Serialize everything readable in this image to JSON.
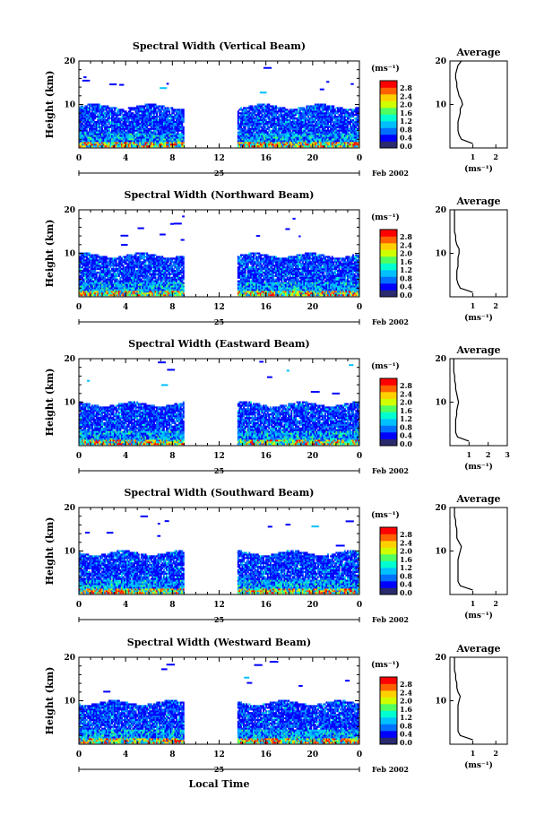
{
  "figure": {
    "panel_titles": [
      "Spectral Width (Vertical Beam)",
      "Spectral Width (Northward Beam)",
      "Spectral Width (Eastward Beam)",
      "Spectral Width (Southward Beam)",
      "Spectral Width (Westward Beam)"
    ],
    "ylabel": "Height (km)",
    "xlabel": "Local Time",
    "date_day": "25",
    "date_month": "Feb 2002",
    "colorbar_unit": "(ms⁻¹)",
    "colorbar_ticks": [
      "2.8",
      "2.4",
      "2.0",
      "1.6",
      "1.2",
      "0.8",
      "0.4",
      "0.0"
    ],
    "average_title": "Average",
    "average_unit": "(ms⁻¹)",
    "x_ticks": [
      "0",
      "4",
      "8",
      "12",
      "16",
      "20",
      "0"
    ],
    "y_ticks": [
      "20",
      "10"
    ],
    "profile_x_ticks": [
      [
        "1",
        "2"
      ],
      [
        "1",
        "2"
      ],
      [
        "1",
        "2",
        "3"
      ],
      [
        "1",
        "2"
      ],
      [
        "1",
        "2"
      ]
    ]
  },
  "chart_data": {
    "type": "heatmap",
    "panels": [
      {
        "title": "Spectral Width (Vertical Beam)",
        "beam": "vertical"
      },
      {
        "title": "Spectral Width (Northward Beam)",
        "beam": "northward"
      },
      {
        "title": "Spectral Width (Eastward Beam)",
        "beam": "eastward"
      },
      {
        "title": "Spectral Width (Southward Beam)",
        "beam": "southward"
      },
      {
        "title": "Spectral Width (Westward Beam)",
        "beam": "westward"
      }
    ],
    "xlabel": "Local Time",
    "ylabel": "Height (km)",
    "xlim": [
      0,
      24
    ],
    "ylim": [
      0,
      20
    ],
    "data_gap_hours": [
      9,
      13.5
    ],
    "echo_top_km": 10,
    "colorbar_range_ms": [
      0.0,
      3.0
    ],
    "colorbar_colors": [
      "#2a2a6e",
      "#0000ff",
      "#0070ff",
      "#00c0ff",
      "#00ffd0",
      "#50ff60",
      "#d0ff00",
      "#ffd000",
      "#ff6000",
      "#ff0000"
    ],
    "average_profiles": [
      {
        "beam": "vertical",
        "xlim": [
          0,
          2.5
        ],
        "heights": [
          1,
          2,
          3,
          4,
          5,
          6,
          7,
          8,
          9,
          10,
          11,
          12,
          13,
          14,
          15,
          16,
          17,
          18,
          19,
          20
        ],
        "values": [
          1.0,
          0.5,
          0.4,
          0.35,
          0.35,
          0.35,
          0.4,
          0.45,
          0.45,
          0.55,
          0.5,
          0.4,
          0.35,
          0.3,
          0.3,
          0.25,
          0.25,
          0.3,
          0.35,
          0.5
        ]
      },
      {
        "beam": "northward",
        "xlim": [
          0,
          2.5
        ],
        "heights": [
          1,
          2,
          3,
          4,
          5,
          6,
          7,
          8,
          9,
          10,
          11,
          12,
          13,
          14,
          15,
          16,
          17,
          18,
          19,
          20
        ],
        "values": [
          1.0,
          0.45,
          0.35,
          0.3,
          0.3,
          0.3,
          0.35,
          0.35,
          0.35,
          0.4,
          0.4,
          0.3,
          0.25,
          0.25,
          0.2,
          0.2,
          0.2,
          0.2,
          0.2,
          0.2
        ]
      },
      {
        "beam": "eastward",
        "xlim": [
          0,
          3.0
        ],
        "heights": [
          1,
          2,
          3,
          4,
          5,
          6,
          7,
          8,
          9,
          10,
          11,
          12,
          13,
          14,
          15,
          16,
          17,
          18,
          19,
          20
        ],
        "values": [
          1.0,
          0.4,
          0.3,
          0.3,
          0.3,
          0.3,
          0.35,
          0.35,
          0.4,
          0.45,
          0.4,
          0.35,
          0.3,
          0.3,
          0.25,
          0.25,
          0.2,
          0.2,
          0.2,
          0.2
        ]
      },
      {
        "beam": "southward",
        "xlim": [
          0,
          2.5
        ],
        "heights": [
          1,
          2,
          3,
          4,
          5,
          6,
          7,
          8,
          9,
          10,
          11,
          12,
          13,
          14,
          15,
          16,
          17,
          18,
          19,
          20
        ],
        "values": [
          1.0,
          0.45,
          0.35,
          0.35,
          0.35,
          0.35,
          0.35,
          0.35,
          0.4,
          0.45,
          0.5,
          0.4,
          0.3,
          0.3,
          0.3,
          0.25,
          0.25,
          0.2,
          0.2,
          0.2
        ]
      },
      {
        "beam": "westward",
        "xlim": [
          0,
          2.5
        ],
        "heights": [
          1,
          2,
          3,
          4,
          5,
          6,
          7,
          8,
          9,
          10,
          11,
          12,
          13,
          14,
          15,
          16,
          17,
          18,
          19,
          20
        ],
        "values": [
          1.0,
          0.45,
          0.35,
          0.35,
          0.35,
          0.35,
          0.35,
          0.35,
          0.35,
          0.4,
          0.45,
          0.35,
          0.3,
          0.3,
          0.25,
          0.25,
          0.2,
          0.2,
          0.2,
          0.2
        ]
      }
    ]
  }
}
